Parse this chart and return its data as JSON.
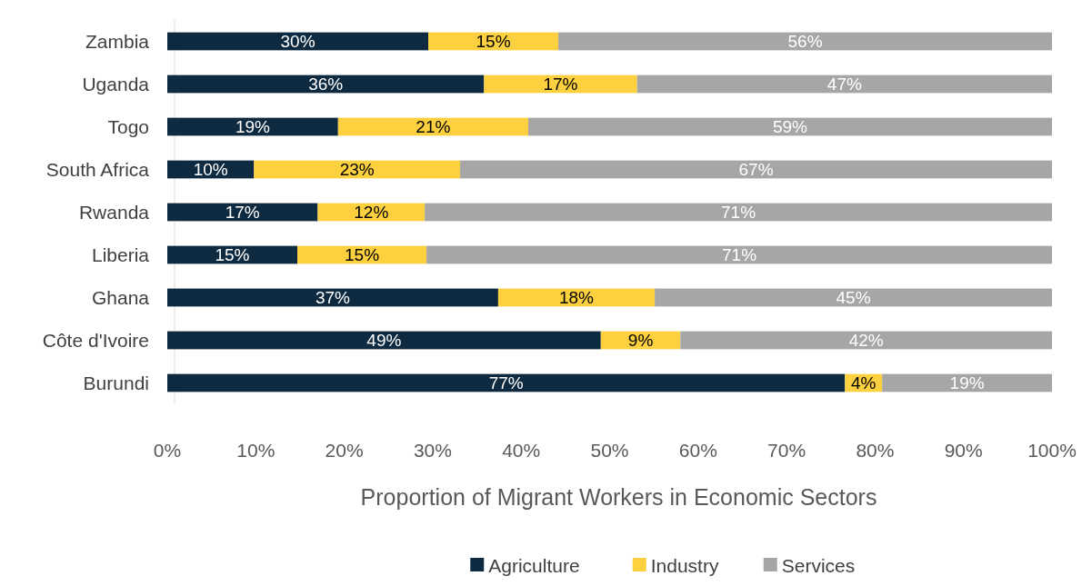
{
  "chart_data": {
    "type": "bar",
    "orientation": "horizontal",
    "stacked": true,
    "xlabel": "Proportion of Migrant Workers in Economic Sectors",
    "categories": [
      "Zambia",
      "Uganda",
      "Togo",
      "South Africa",
      "Rwanda",
      "Liberia",
      "Ghana",
      "Côte d'Ivoire",
      "Burundi"
    ],
    "series": [
      {
        "name": "Agriculture",
        "color": "#0e2a40",
        "values": [
          29.5,
          35.8,
          19.3,
          9.8,
          17.0,
          14.7,
          37.4,
          49.0,
          76.6
        ],
        "value_labels": [
          "30%",
          "36%",
          "19%",
          "10%",
          "17%",
          "15%",
          "37%",
          "49%",
          "77%"
        ]
      },
      {
        "name": "Industry",
        "color": "#fdd03f",
        "values": [
          14.7,
          17.3,
          21.5,
          23.3,
          12.1,
          14.6,
          17.7,
          9.0,
          4.2
        ],
        "value_labels": [
          "15%",
          "17%",
          "21%",
          "23%",
          "12%",
          "15%",
          "18%",
          "9%",
          "4%"
        ]
      },
      {
        "name": "Services",
        "color": "#a6a6a6",
        "values": [
          55.8,
          46.9,
          59.2,
          66.9,
          70.9,
          70.7,
          44.9,
          42.0,
          19.2
        ],
        "value_labels": [
          "56%",
          "47%",
          "59%",
          "67%",
          "71%",
          "71%",
          "45%",
          "42%",
          "19%"
        ]
      }
    ],
    "xlim": [
      0,
      100
    ],
    "xticks": [
      {
        "value": 0,
        "label": "0%"
      },
      {
        "value": 10,
        "label": "10%"
      },
      {
        "value": 20,
        "label": "20%"
      },
      {
        "value": 30,
        "label": "30%"
      },
      {
        "value": 40,
        "label": "40%"
      },
      {
        "value": 50,
        "label": "50%"
      },
      {
        "value": 60,
        "label": "60%"
      },
      {
        "value": 70,
        "label": "70%"
      },
      {
        "value": 80,
        "label": "80%"
      },
      {
        "value": 90,
        "label": "90%"
      },
      {
        "value": 100,
        "label": "100%"
      }
    ],
    "grid": false,
    "legend": "bottom"
  }
}
